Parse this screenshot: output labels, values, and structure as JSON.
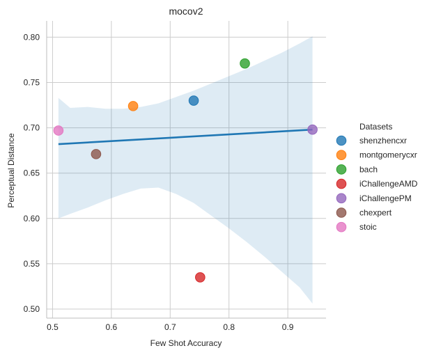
{
  "chart_data": {
    "type": "scatter",
    "title": "mocov2",
    "xlabel": "Few Shot Accuracy",
    "ylabel": "Perceptual Distance",
    "xlim": [
      0.49,
      0.965
    ],
    "ylim": [
      0.49,
      0.818
    ],
    "xticks": [
      0.5,
      0.6,
      0.7,
      0.8,
      0.9
    ],
    "yticks": [
      0.5,
      0.55,
      0.6,
      0.65,
      0.7,
      0.75,
      0.8
    ],
    "xtick_labels": [
      "0.5",
      "0.6",
      "0.7",
      "0.8",
      "0.9"
    ],
    "ytick_labels": [
      "0.50",
      "0.55",
      "0.60",
      "0.65",
      "0.70",
      "0.75",
      "0.80"
    ],
    "grid": true,
    "legend": {
      "title": "Datasets",
      "placement": "right"
    },
    "series": [
      {
        "name": "shenzhencxr",
        "color": "#1f77b4",
        "x": 0.74,
        "y": 0.73
      },
      {
        "name": "montgomerycxr",
        "color": "#ff7f0e",
        "x": 0.637,
        "y": 0.724
      },
      {
        "name": "bach",
        "color": "#2ca02c",
        "x": 0.827,
        "y": 0.771
      },
      {
        "name": "iChallengeAMD",
        "color": "#d62728",
        "x": 0.751,
        "y": 0.535
      },
      {
        "name": "iChallengePM",
        "color": "#9467bd",
        "x": 0.942,
        "y": 0.698
      },
      {
        "name": "chexpert",
        "color": "#8c564b",
        "x": 0.574,
        "y": 0.671
      },
      {
        "name": "stoic",
        "color": "#e377c2",
        "x": 0.51,
        "y": 0.697
      }
    ],
    "regression": {
      "color": "#1f77b4",
      "line": [
        [
          0.51,
          0.682
        ],
        [
          0.942,
          0.698
        ]
      ],
      "ci_upper": [
        [
          0.51,
          0.733
        ],
        [
          0.53,
          0.722
        ],
        [
          0.56,
          0.723
        ],
        [
          0.59,
          0.721
        ],
        [
          0.62,
          0.721
        ],
        [
          0.65,
          0.723
        ],
        [
          0.68,
          0.727
        ],
        [
          0.71,
          0.734
        ],
        [
          0.74,
          0.741
        ],
        [
          0.77,
          0.749
        ],
        [
          0.8,
          0.757
        ],
        [
          0.83,
          0.765
        ],
        [
          0.86,
          0.774
        ],
        [
          0.89,
          0.783
        ],
        [
          0.92,
          0.793
        ],
        [
          0.942,
          0.801
        ]
      ],
      "ci_lower": [
        [
          0.51,
          0.6
        ],
        [
          0.53,
          0.605
        ],
        [
          0.56,
          0.612
        ],
        [
          0.59,
          0.62
        ],
        [
          0.62,
          0.627
        ],
        [
          0.65,
          0.633
        ],
        [
          0.68,
          0.634
        ],
        [
          0.71,
          0.627
        ],
        [
          0.74,
          0.617
        ],
        [
          0.77,
          0.603
        ],
        [
          0.8,
          0.589
        ],
        [
          0.83,
          0.574
        ],
        [
          0.86,
          0.558
        ],
        [
          0.89,
          0.541
        ],
        [
          0.92,
          0.524
        ],
        [
          0.942,
          0.506
        ]
      ]
    }
  }
}
